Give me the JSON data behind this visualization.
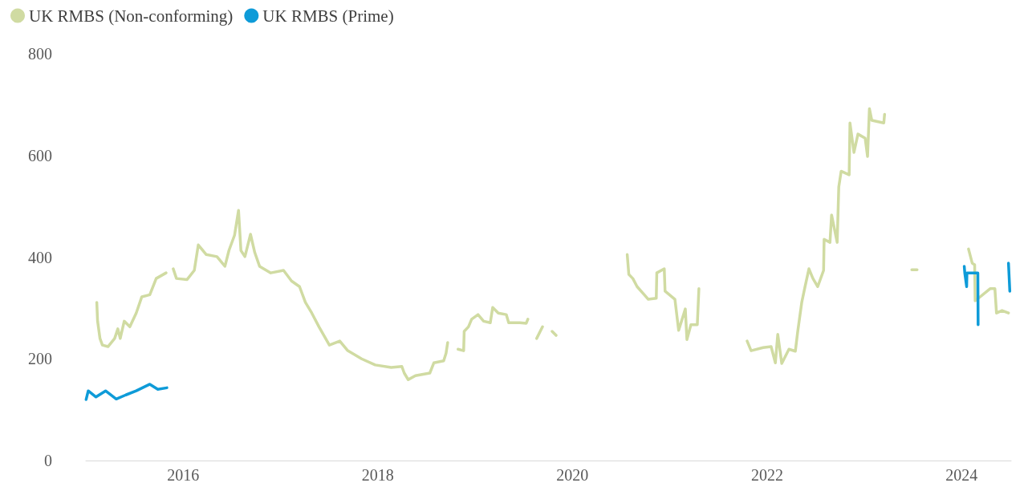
{
  "chart_data": {
    "type": "line",
    "legend": "top left",
    "grid": false,
    "marker": "none",
    "line_style": "solid",
    "xlim": [
      "2015-01-01",
      "2024-07-05"
    ],
    "xticks": [
      "2016",
      "2018",
      "2020",
      "2022",
      "2024"
    ],
    "ylim": [
      0,
      800
    ],
    "yticks": [
      0,
      200,
      400,
      600,
      800
    ],
    "series": [
      {
        "name": "UK RMBS (Non-conforming)",
        "color": "#d0dba2",
        "x": [
          "2015-02-11",
          "2015-02-14",
          "2015-02-23",
          "2015-03-04",
          "2015-03-25",
          "2015-04-19",
          "2015-05-01",
          "2015-05-10",
          "2015-05-25",
          "2015-06-15",
          "2015-07-09",
          "2015-07-30",
          "2015-08-29",
          "2015-09-22",
          "2015-10-29",
          "2015-11-10",
          "2015-11-25",
          "2015-12-07",
          "2016-01-16",
          "2016-02-12",
          "2016-02-27",
          "2016-03-28",
          "2016-05-07",
          "2016-06-06",
          "2016-06-21",
          "2016-07-12",
          "2016-07-27",
          "2016-08-05",
          "2016-08-20",
          "2016-09-10",
          "2016-09-26",
          "2016-10-14",
          "2016-11-25",
          "2017-01-12",
          "2017-02-11",
          "2017-03-13",
          "2017-04-04",
          "2017-04-28",
          "2017-05-25",
          "2017-07-03",
          "2017-08-11",
          "2017-09-10",
          "2017-11-01",
          "2017-12-22",
          "2018-02-20",
          "2018-04-01",
          "2018-04-10",
          "2018-04-25",
          "2018-05-22",
          "2018-07-15",
          "2018-07-30",
          "2018-09-05",
          "2018-09-14",
          "2018-09-20",
          "2018-10-01",
          "2018-10-29",
          "2018-11-19",
          "2018-11-21",
          "2018-12-07",
          "2018-12-19",
          "2019-01-12",
          "2019-02-02",
          "2019-02-27",
          "2019-03-08",
          "2019-03-29",
          "2019-04-28",
          "2019-05-07",
          "2019-06-18",
          "2019-07-12",
          "2019-07-18",
          "2019-08-01",
          "2019-08-20",
          "2019-09-11",
          "2019-09-25",
          "2019-10-17",
          "2019-11-01",
          "2020-03-01",
          "2020-07-25",
          "2020-07-31",
          "2020-08-15",
          "2020-08-31",
          "2020-09-27",
          "2020-10-12",
          "2020-11-11",
          "2020-11-13",
          "2020-12-11",
          "2020-12-14",
          "2021-01-20",
          "2021-02-03",
          "2021-02-28",
          "2021-03-06",
          "2021-03-21",
          "2021-04-14",
          "2021-04-20",
          "2021-07-01",
          "2021-10-18",
          "2021-11-02",
          "2021-12-17",
          "2022-01-16",
          "2022-02-01",
          "2022-02-10",
          "2022-02-25",
          "2022-03-24",
          "2022-04-17",
          "2022-04-26",
          "2022-05-11",
          "2022-05-23",
          "2022-06-07",
          "2022-06-22",
          "2022-07-10",
          "2022-08-01",
          "2022-08-03",
          "2022-08-25",
          "2022-08-31",
          "2022-09-21",
          "2022-09-27",
          "2022-10-06",
          "2022-11-05",
          "2022-11-08",
          "2022-11-23",
          "2022-12-08",
          "2023-01-04",
          "2023-01-13",
          "2023-01-20",
          "2023-01-29",
          "2023-03-15",
          "2023-03-18",
          "2023-05-01",
          "2023-06-28",
          "2023-07-18",
          "2023-10-01",
          "2024-01-27",
          "2024-02-10",
          "2024-02-19",
          "2024-02-21",
          "2024-04-17",
          "2024-05-05",
          "2024-05-11",
          "2024-06-01",
          "2024-06-25"
        ],
        "values": [
          311,
          274,
          240,
          227,
          224,
          240,
          259,
          240,
          274,
          263,
          290,
          322,
          326,
          358,
          369,
          null,
          377,
          358,
          356,
          374,
          424,
          405,
          401,
          382,
          413,
          443,
          492,
          413,
          401,
          445,
          409,
          382,
          369,
          374,
          353,
          342,
          311,
          290,
          263,
          227,
          235,
          216,
          200,
          188,
          183,
          185,
          172,
          159,
          167,
          172,
          192,
          196,
          211,
          232,
          null,
          219,
          216,
          254,
          263,
          278,
          287,
          274,
          271,
          301,
          290,
          287,
          271,
          271,
          270,
          278,
          null,
          240,
          263,
          null,
          254,
          246,
          null,
          405,
          366,
          358,
          342,
          326,
          317,
          319,
          369,
          377,
          333,
          317,
          256,
          298,
          238,
          267,
          267,
          338,
          null,
          235,
          216,
          222,
          224,
          192,
          248,
          191,
          219,
          215,
          254,
          311,
          341,
          377,
          358,
          342,
          374,
          435,
          429,
          483,
          429,
          538,
          569,
          562,
          664,
          606,
          642,
          634,
          598,
          692,
          669,
          664,
          681,
          null,
          375,
          375,
          null,
          416,
          388,
          385,
          314,
          338,
          338,
          290,
          295,
          290
        ]
      },
      {
        "name": "UK RMBS (Prime)",
        "color": "#0e9bd8",
        "x": [
          "2015-01-02",
          "2015-01-10",
          "2015-02-08",
          "2015-03-16",
          "2015-04-25",
          "2015-05-31",
          "2015-07-09",
          "2015-08-29",
          "2015-09-28",
          "2015-11-01",
          "2015-12-01",
          "2024-01-11",
          "2024-01-13",
          "2024-01-20",
          "2024-01-21",
          "2024-03-02",
          "2024-03-03",
          "2024-04-15",
          "2024-06-25",
          "2024-06-30"
        ],
        "values": [
          120,
          137,
          125,
          137,
          121,
          129,
          137,
          150,
          140,
          143,
          null,
          382,
          369,
          342,
          369,
          369,
          267,
          null,
          388,
          333
        ]
      }
    ]
  }
}
